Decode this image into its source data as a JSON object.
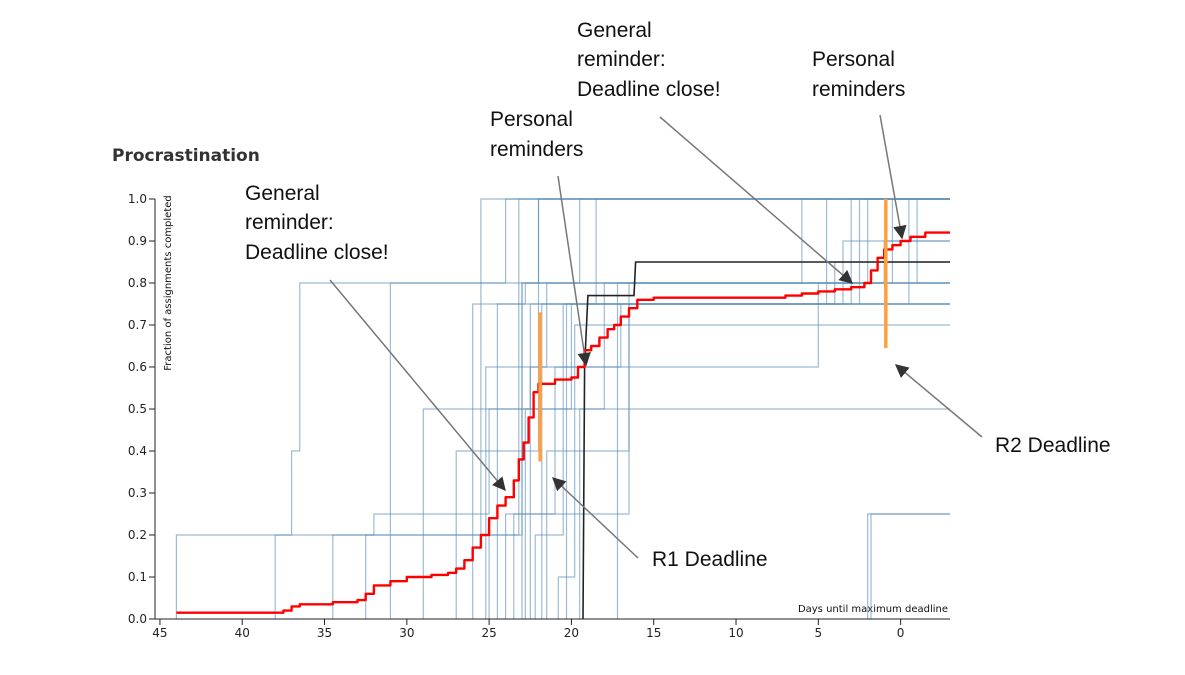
{
  "chart_data": {
    "type": "line",
    "title": "Procrastination",
    "xlabel": "Days until maximum deadline",
    "ylabel": "Fraction of assignments completed",
    "xlim": [
      45.3,
      -3
    ],
    "ylim": [
      0,
      1.0
    ],
    "x_ticks": [
      45,
      40,
      35,
      30,
      25,
      20,
      15,
      10,
      5,
      0
    ],
    "y_ticks": [
      0.0,
      0.1,
      0.2,
      0.3,
      0.4,
      0.5,
      0.6,
      0.7,
      0.8,
      0.9,
      1.0
    ],
    "x_tick_labels": [
      "45",
      "40",
      "35",
      "30",
      "25",
      "20",
      "15",
      "10",
      "5",
      "0"
    ],
    "y_tick_labels": [
      "0.0",
      "0.1",
      "0.2",
      "0.3",
      "0.4",
      "0.5",
      "0.6",
      "0.7",
      "0.8",
      "0.9",
      "1.0"
    ],
    "grid": false,
    "colors": {
      "mean": "#ff0000",
      "individual": "#5b8db8",
      "highlight": "#222222",
      "deadline": "#ffa040"
    },
    "series": [
      {
        "role": "mean",
        "points": [
          [
            44,
            0.015
          ],
          [
            38,
            0.015
          ],
          [
            37.5,
            0.02
          ],
          [
            37,
            0.03
          ],
          [
            36.5,
            0.035
          ],
          [
            34.5,
            0.04
          ],
          [
            33,
            0.045
          ],
          [
            32.5,
            0.06
          ],
          [
            32,
            0.08
          ],
          [
            31,
            0.09
          ],
          [
            30,
            0.1
          ],
          [
            28.5,
            0.105
          ],
          [
            27.5,
            0.11
          ],
          [
            27,
            0.12
          ],
          [
            26.5,
            0.14
          ],
          [
            26,
            0.17
          ],
          [
            25.5,
            0.2
          ],
          [
            25,
            0.24
          ],
          [
            24.5,
            0.27
          ],
          [
            24,
            0.29
          ],
          [
            23.5,
            0.33
          ],
          [
            23.2,
            0.38
          ],
          [
            22.9,
            0.42
          ],
          [
            22.6,
            0.48
          ],
          [
            22.3,
            0.54
          ],
          [
            22,
            0.56
          ],
          [
            21,
            0.57
          ],
          [
            20,
            0.575
          ],
          [
            19.6,
            0.6
          ],
          [
            19.2,
            0.64
          ],
          [
            18.8,
            0.65
          ],
          [
            18.3,
            0.67
          ],
          [
            17.8,
            0.69
          ],
          [
            17.4,
            0.7
          ],
          [
            17,
            0.72
          ],
          [
            16.5,
            0.74
          ],
          [
            16,
            0.76
          ],
          [
            15,
            0.765
          ],
          [
            10,
            0.765
          ],
          [
            7,
            0.77
          ],
          [
            6,
            0.775
          ],
          [
            5,
            0.78
          ],
          [
            4,
            0.785
          ],
          [
            3,
            0.79
          ],
          [
            2.2,
            0.8
          ],
          [
            1.8,
            0.83
          ],
          [
            1.4,
            0.86
          ],
          [
            1.0,
            0.88
          ],
          [
            0.5,
            0.89
          ],
          [
            0,
            0.9
          ],
          [
            -0.6,
            0.91
          ],
          [
            -1.5,
            0.92
          ],
          [
            -3,
            0.92
          ]
        ]
      },
      {
        "role": "highlight",
        "points": [
          [
            19.3,
            0
          ],
          [
            19.2,
            0.6
          ],
          [
            19,
            0.77
          ],
          [
            16.2,
            0.77
          ],
          [
            16.1,
            0.85
          ],
          [
            -3,
            0.85
          ]
        ]
      },
      {
        "role": "individual",
        "points": [
          [
            44,
            0
          ],
          [
            44,
            0.2
          ],
          [
            37,
            0.2
          ],
          [
            37,
            0.4
          ],
          [
            36.5,
            0.4
          ],
          [
            36.5,
            0.8
          ],
          [
            22,
            0.8
          ],
          [
            22,
            1.0
          ],
          [
            -3,
            1.0
          ]
        ]
      },
      {
        "role": "individual",
        "points": [
          [
            38,
            0
          ],
          [
            38,
            0.2
          ],
          [
            32,
            0.2
          ],
          [
            32,
            0.25
          ],
          [
            25,
            0.25
          ],
          [
            25,
            0.5
          ],
          [
            20,
            0.5
          ],
          [
            20,
            0.75
          ],
          [
            -3,
            0.75
          ]
        ]
      },
      {
        "role": "individual",
        "points": [
          [
            34.5,
            0
          ],
          [
            34.5,
            0.2
          ],
          [
            25.5,
            0.2
          ],
          [
            25.5,
            1.0
          ],
          [
            -3,
            1.0
          ]
        ]
      },
      {
        "role": "individual",
        "points": [
          [
            32.5,
            0
          ],
          [
            32.5,
            0.2
          ],
          [
            23,
            0.2
          ],
          [
            23,
            0.8
          ],
          [
            -3,
            0.8
          ]
        ]
      },
      {
        "role": "individual",
        "points": [
          [
            31,
            0
          ],
          [
            31,
            0.8
          ],
          [
            24,
            0.8
          ],
          [
            24,
            1.0
          ],
          [
            -3,
            1.0
          ]
        ]
      },
      {
        "role": "individual",
        "points": [
          [
            29,
            0
          ],
          [
            29,
            0.5
          ],
          [
            22.5,
            0.5
          ],
          [
            22.5,
            0.75
          ],
          [
            -3,
            0.75
          ]
        ]
      },
      {
        "role": "individual",
        "points": [
          [
            27,
            0
          ],
          [
            27,
            0.4
          ],
          [
            22,
            0.4
          ],
          [
            22,
            0.75
          ],
          [
            3,
            0.75
          ],
          [
            3,
            1.0
          ],
          [
            -3,
            1.0
          ]
        ]
      },
      {
        "role": "individual",
        "points": [
          [
            26,
            0
          ],
          [
            26,
            0.75
          ],
          [
            22.8,
            0.75
          ],
          [
            22.8,
            0.8
          ],
          [
            -3,
            0.8
          ]
        ]
      },
      {
        "role": "individual",
        "points": [
          [
            25.2,
            0
          ],
          [
            25.2,
            0.6
          ],
          [
            21.5,
            0.6
          ],
          [
            21.5,
            0.8
          ],
          [
            2,
            0.8
          ],
          [
            2,
            1.0
          ],
          [
            -3,
            1.0
          ]
        ]
      },
      {
        "role": "individual",
        "points": [
          [
            24.5,
            0
          ],
          [
            24.5,
            0.75
          ],
          [
            22,
            0.75
          ],
          [
            22,
            1.0
          ],
          [
            -3,
            1.0
          ]
        ]
      },
      {
        "role": "individual",
        "points": [
          [
            23.5,
            0
          ],
          [
            23.5,
            0.25
          ],
          [
            16.5,
            0.25
          ],
          [
            16.5,
            0.75
          ],
          [
            -3,
            0.75
          ]
        ]
      },
      {
        "role": "individual",
        "points": [
          [
            23,
            0
          ],
          [
            23,
            0.8
          ],
          [
            19.5,
            0.8
          ],
          [
            19.5,
            1.0
          ],
          [
            -3,
            1.0
          ]
        ]
      },
      {
        "role": "individual",
        "points": [
          [
            22.8,
            0
          ],
          [
            22.8,
            0.5
          ],
          [
            18,
            0.5
          ],
          [
            18,
            0.8
          ],
          [
            -3,
            0.8
          ]
        ]
      },
      {
        "role": "individual",
        "points": [
          [
            22.5,
            0
          ],
          [
            22.5,
            0.6
          ],
          [
            17,
            0.6
          ],
          [
            17,
            0.75
          ],
          [
            4,
            0.75
          ],
          [
            4,
            0.85
          ],
          [
            -3,
            0.85
          ]
        ]
      },
      {
        "role": "individual",
        "points": [
          [
            22.2,
            0
          ],
          [
            22.2,
            0.2
          ],
          [
            20.5,
            0.2
          ],
          [
            20.5,
            0.75
          ],
          [
            -3,
            0.75
          ]
        ]
      },
      {
        "role": "individual",
        "points": [
          [
            21.5,
            0
          ],
          [
            21.5,
            0.4
          ],
          [
            16.5,
            0.4
          ],
          [
            16.5,
            0.8
          ],
          [
            1,
            0.8
          ],
          [
            1,
            0.9
          ],
          [
            -3,
            0.9
          ]
        ]
      },
      {
        "role": "individual",
        "points": [
          [
            20.8,
            0
          ],
          [
            20.8,
            0.1
          ],
          [
            19.8,
            0.1
          ],
          [
            19.8,
            0.7
          ],
          [
            -3,
            0.7
          ]
        ]
      },
      {
        "role": "individual",
        "points": [
          [
            20.3,
            0
          ],
          [
            20.3,
            0.75
          ],
          [
            18.5,
            0.75
          ],
          [
            18.5,
            1.0
          ],
          [
            -3,
            1.0
          ]
        ]
      },
      {
        "role": "individual",
        "points": [
          [
            19.5,
            0
          ],
          [
            19.5,
            0.5
          ],
          [
            -3,
            0.5
          ]
        ]
      },
      {
        "role": "individual",
        "points": [
          [
            17.2,
            0
          ],
          [
            17.2,
            0.8
          ],
          [
            6,
            0.8
          ],
          [
            6,
            1.0
          ],
          [
            -3,
            1.0
          ]
        ]
      },
      {
        "role": "individual",
        "points": [
          [
            25,
            0
          ],
          [
            25,
            0.2
          ],
          [
            23.2,
            0.2
          ],
          [
            23.2,
            1.0
          ],
          [
            -3,
            1.0
          ]
        ]
      },
      {
        "role": "individual",
        "points": [
          [
            24,
            0
          ],
          [
            24,
            0.25
          ],
          [
            21,
            0.25
          ],
          [
            21,
            0.6
          ],
          [
            5,
            0.6
          ],
          [
            5,
            0.8
          ],
          [
            -3,
            0.8
          ]
        ]
      },
      {
        "role": "individual",
        "points": [
          [
            21.8,
            0
          ],
          [
            21.8,
            0.75
          ],
          [
            3.5,
            0.75
          ],
          [
            3.5,
            0.9
          ],
          [
            -3,
            0.9
          ]
        ]
      },
      {
        "role": "individual",
        "points": [
          [
            2,
            0
          ],
          [
            2,
            0.25
          ],
          [
            -3,
            0.25
          ]
        ]
      },
      {
        "role": "individual",
        "points": [
          [
            1.8,
            0
          ],
          [
            1.8,
            0.25
          ],
          [
            -3,
            0.25
          ]
        ]
      },
      {
        "role": "individual",
        "points": [
          [
            4.5,
            0.75
          ],
          [
            4.5,
            1.0
          ]
        ]
      },
      {
        "role": "individual",
        "points": [
          [
            2.5,
            0.75
          ],
          [
            2.5,
            1.0
          ]
        ]
      },
      {
        "role": "individual",
        "points": [
          [
            0.5,
            0.8
          ],
          [
            0.5,
            1.0
          ]
        ]
      },
      {
        "role": "individual",
        "points": [
          [
            -0.5,
            0.75
          ],
          [
            -0.5,
            1.0
          ]
        ]
      },
      {
        "role": "individual",
        "points": [
          [
            -1,
            0.8
          ],
          [
            -1,
            1.0
          ]
        ]
      }
    ],
    "deadline_markers": [
      {
        "x": 21.9,
        "y0": 0.375,
        "y1": 0.73
      },
      {
        "x": 0.9,
        "y0": 0.645,
        "y1": 1.0
      }
    ],
    "annotations": [
      {
        "lines": [
          "General",
          "reminder:",
          "Deadline close!"
        ]
      },
      {
        "lines": [
          "Personal",
          "reminders"
        ]
      },
      {
        "lines": [
          "General",
          "reminder:",
          "Deadline close!"
        ]
      },
      {
        "lines": [
          "Personal",
          "reminders"
        ]
      },
      {
        "lines": [
          "R1 Deadline"
        ]
      },
      {
        "lines": [
          "R2 Deadline"
        ]
      }
    ]
  }
}
